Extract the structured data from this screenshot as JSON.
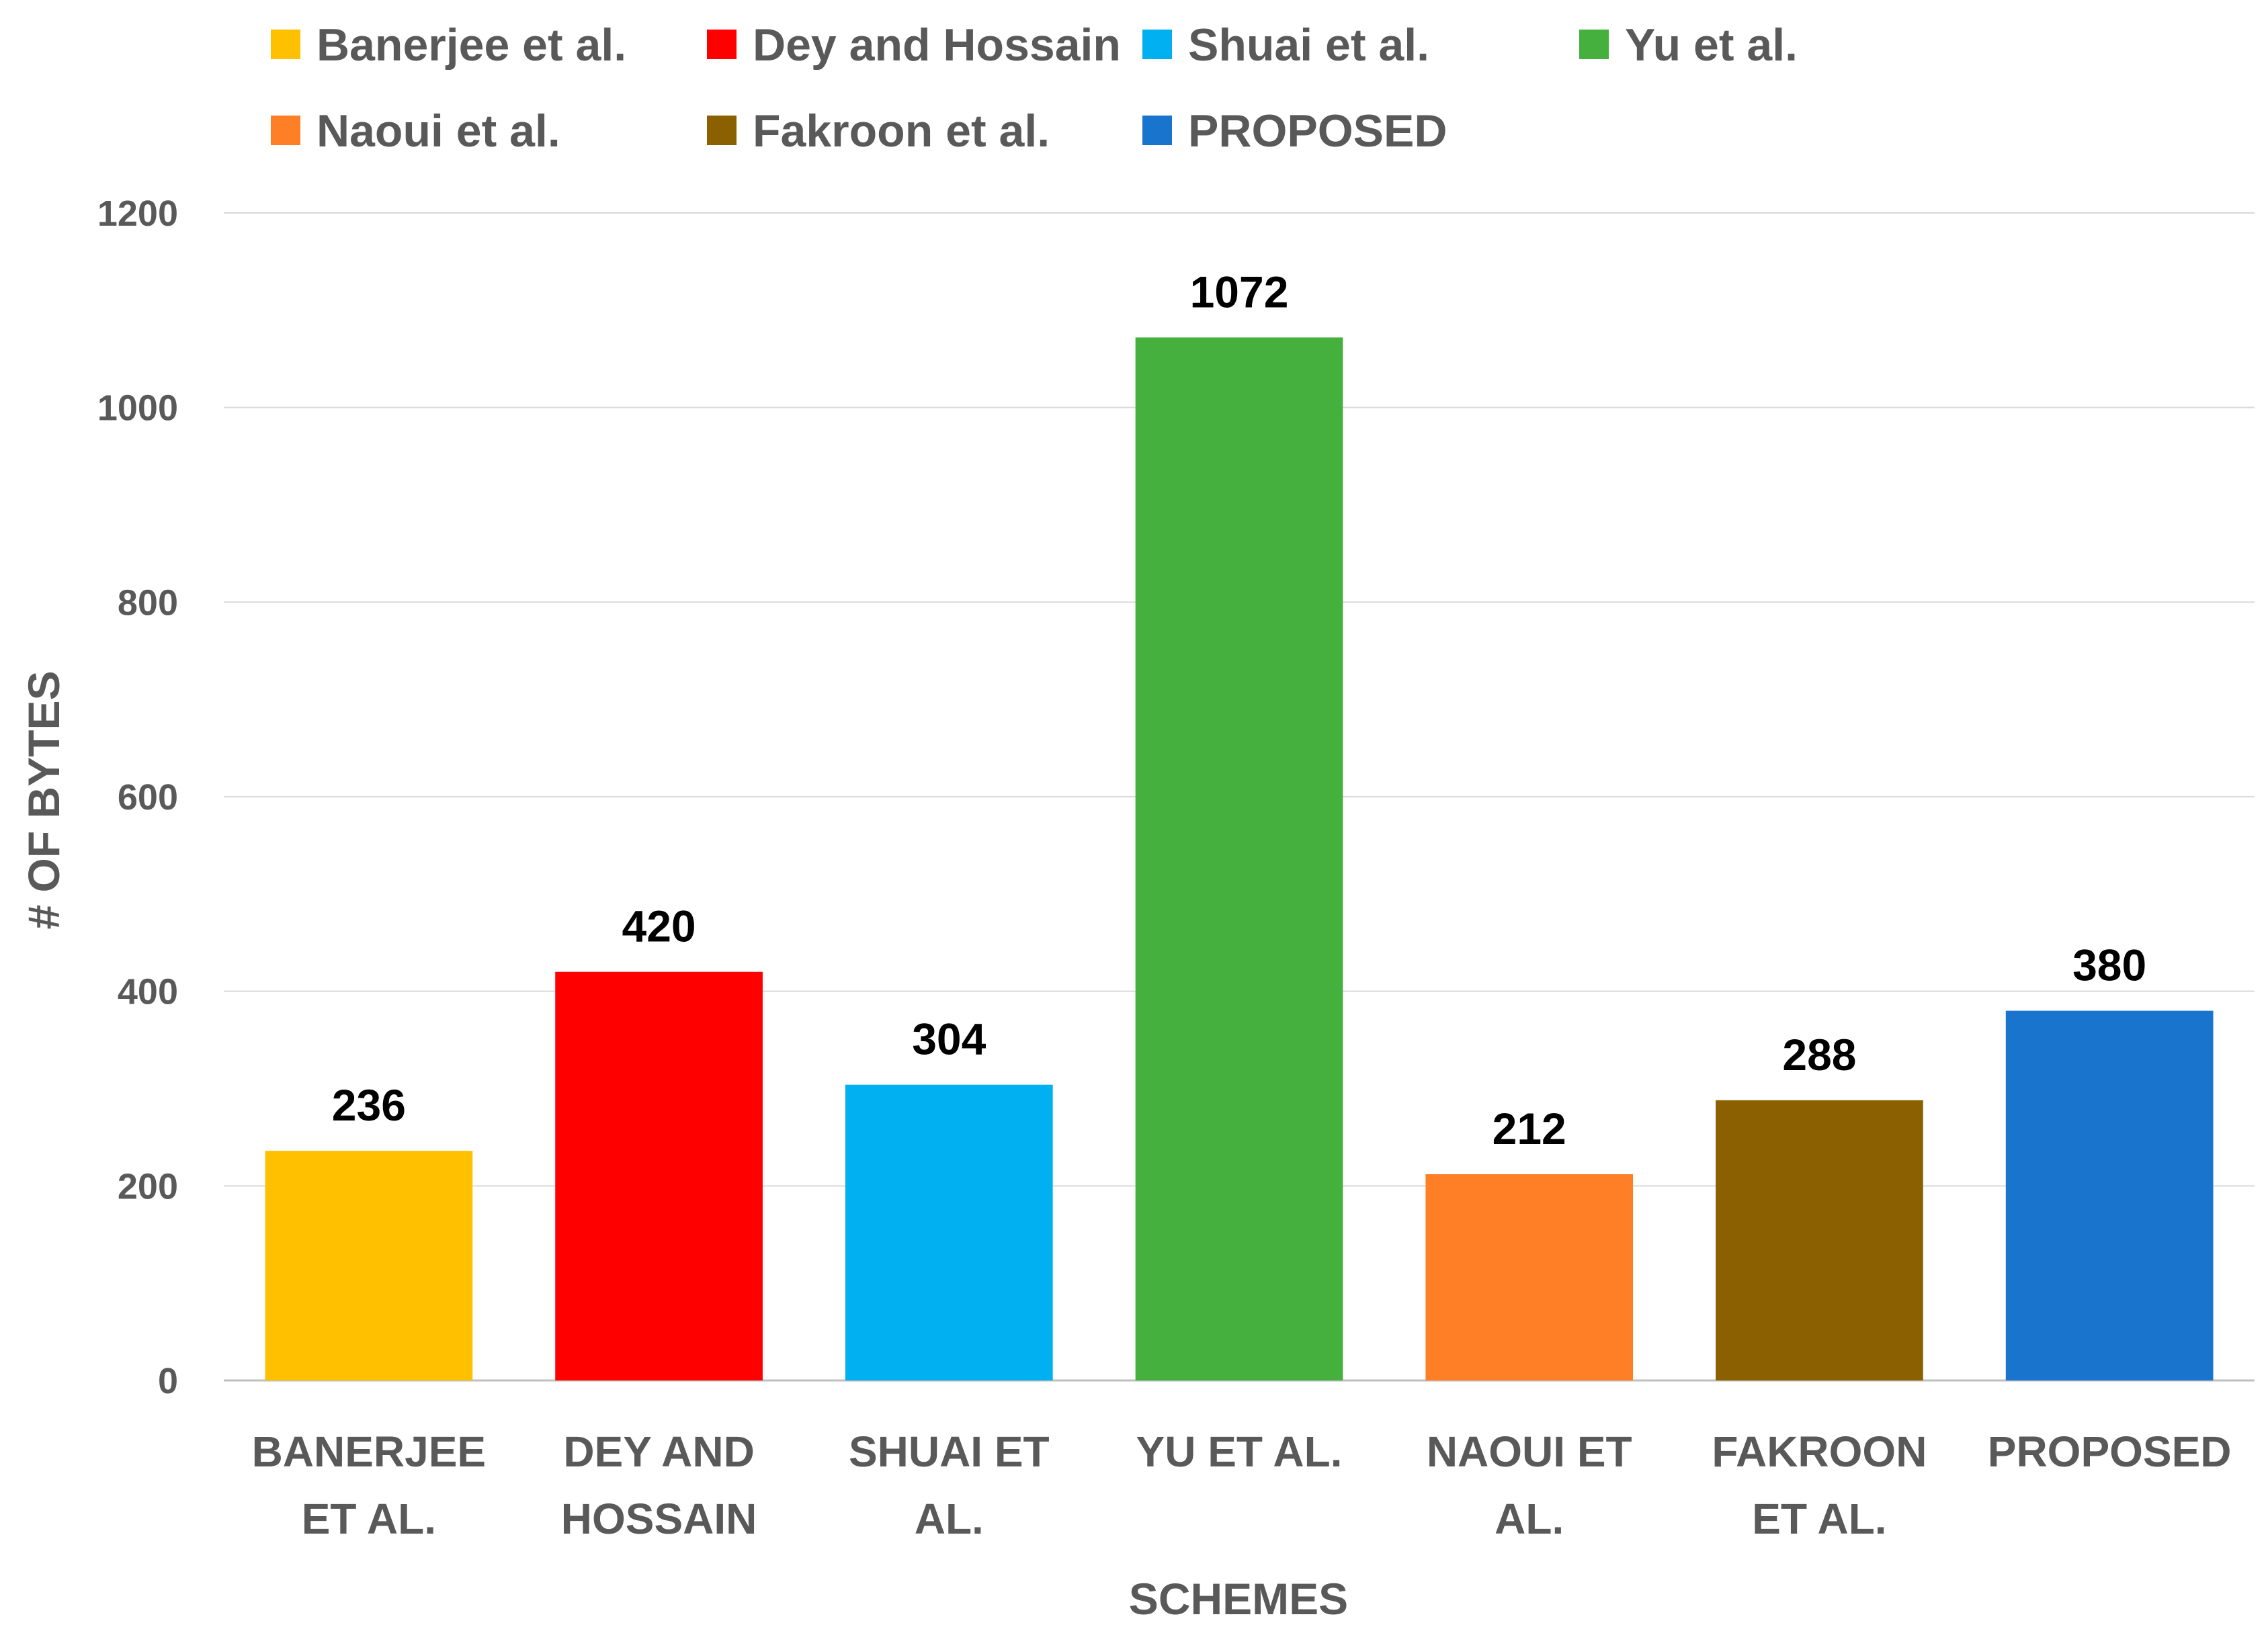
{
  "chart_data": {
    "type": "bar",
    "categories": [
      [
        "BANERJEE",
        "ET AL."
      ],
      [
        "DEY AND",
        "HOSSAIN"
      ],
      [
        "SHUAI ET",
        "AL."
      ],
      [
        "YU ET AL."
      ],
      [
        "NAOUI ET",
        "AL."
      ],
      [
        "FAKROON",
        "ET AL."
      ],
      [
        "PROPOSED"
      ]
    ],
    "values": [
      236,
      420,
      304,
      1072,
      212,
      288,
      380
    ],
    "colors": [
      "#FFC000",
      "#FF0000",
      "#00B0F0",
      "#45B03D",
      "#FF7F27",
      "#8B6000",
      "#1874CD"
    ],
    "legend": [
      "Banerjee et al.",
      "Dey and Hossain",
      "Shuai et al.",
      "Yu et al.",
      "Naoui et al.",
      "Fakroon et al.",
      "PROPOSED"
    ],
    "legend_position": "top",
    "xlabel": "SCHEMES",
    "ylabel": "# OF BYTES",
    "ylim": [
      0,
      1200
    ],
    "yticks": [
      0,
      200,
      400,
      600,
      800,
      1000,
      1200
    ],
    "grid": true,
    "data_labels": true
  }
}
